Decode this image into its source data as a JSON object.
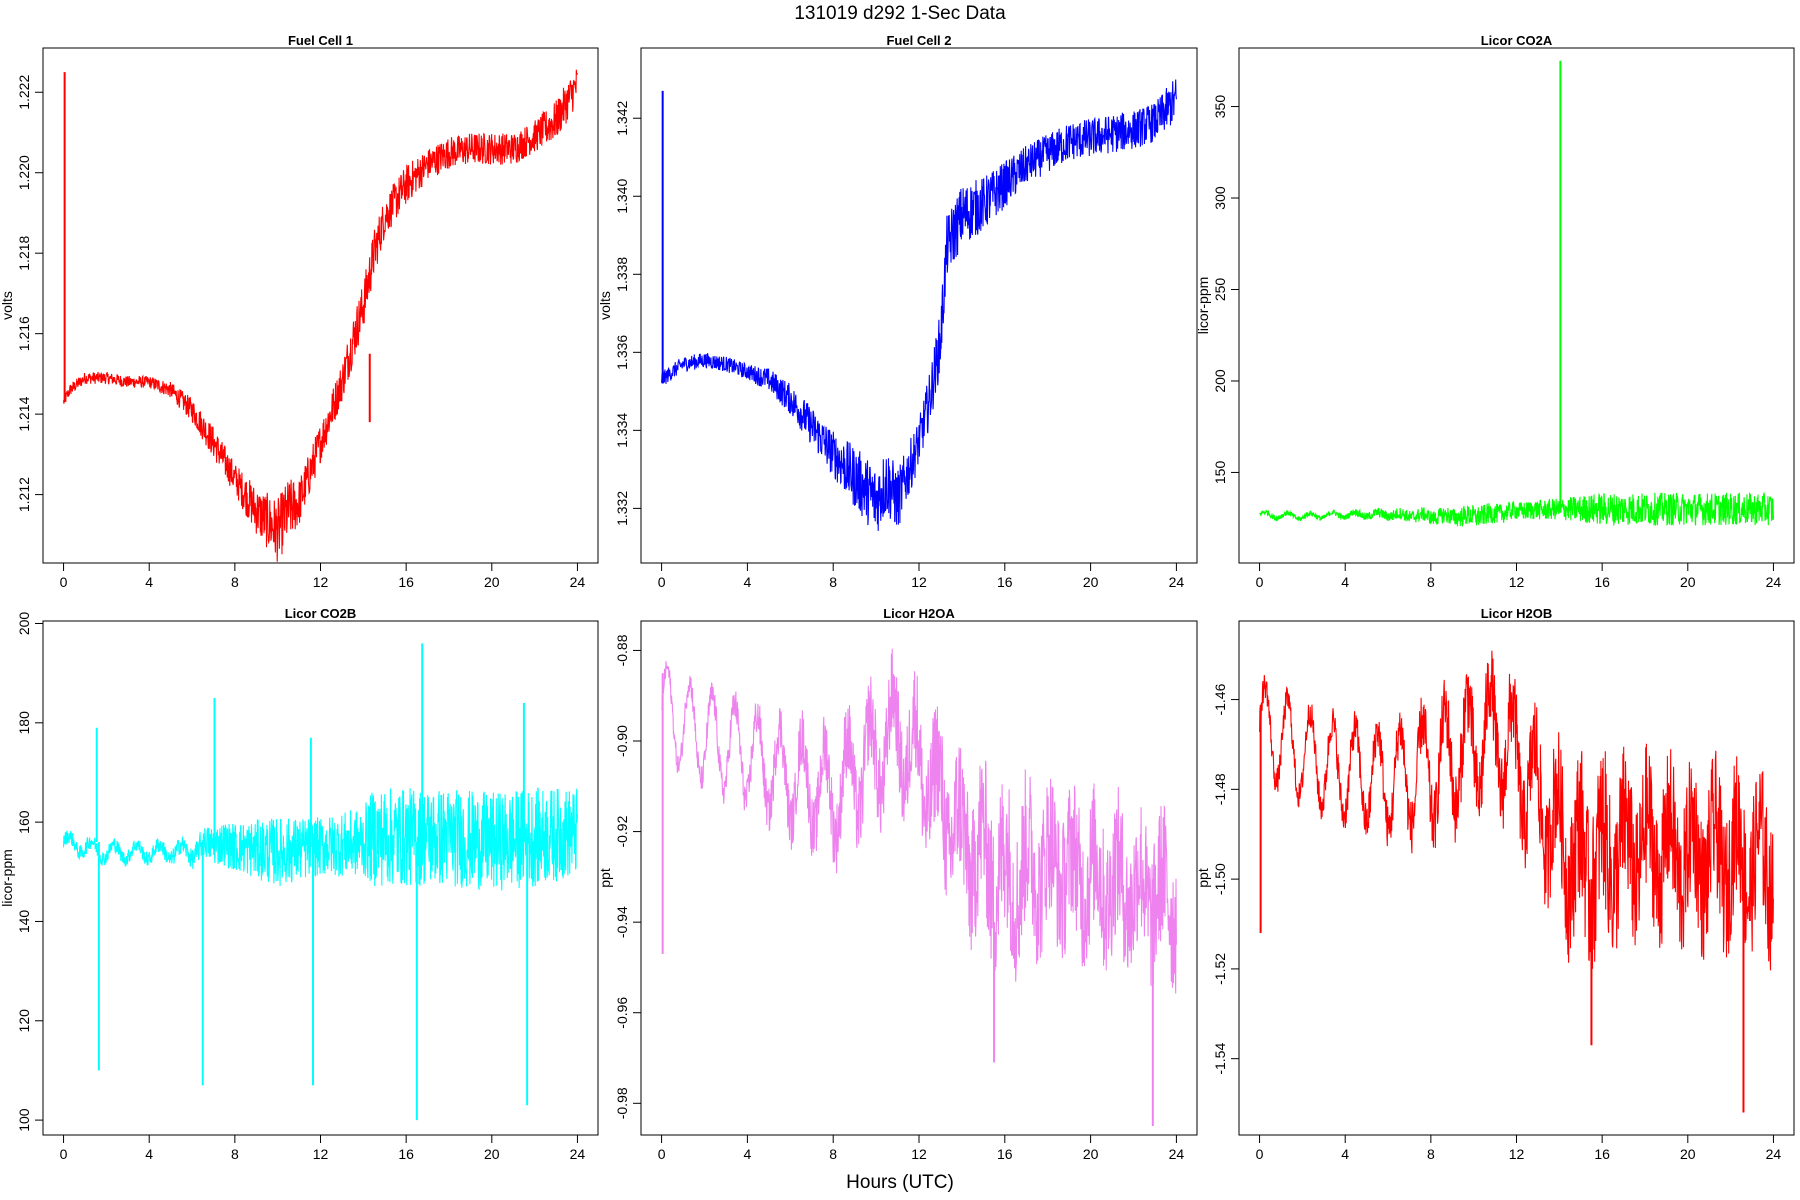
{
  "figure": {
    "title": "131019   d292   1-Sec Data",
    "xlabel": "Hours (UTC)"
  },
  "chart_data": [
    {
      "type": "line",
      "title": "Fuel Cell 1",
      "ylabel": "volts",
      "color": "#ff0000",
      "xlim": [
        -0.96,
        24.96
      ],
      "ylim": [
        1.2103,
        1.2231
      ],
      "xticks": [
        0,
        4,
        8,
        12,
        16,
        20,
        24
      ],
      "yticks": [
        1.212,
        1.214,
        1.216,
        1.218,
        1.22,
        1.222
      ],
      "ytick_labels": [
        "1.212",
        "1.214",
        "1.216",
        "1.218",
        "1.220",
        "1.222"
      ],
      "series": [
        {
          "x": [
            0,
            0.3,
            1,
            2,
            3,
            4,
            5,
            6,
            7,
            8,
            9,
            10,
            10.5,
            11,
            12,
            13,
            13.5,
            14,
            14.5,
            15,
            16,
            17,
            18,
            19,
            20,
            21,
            22,
            23,
            24
          ],
          "y": [
            1.2143,
            1.2146,
            1.2149,
            1.2149,
            1.2148,
            1.2148,
            1.2146,
            1.2141,
            1.2133,
            1.2124,
            1.2116,
            1.2111,
            1.2116,
            1.2118,
            1.2133,
            1.2148,
            1.2158,
            1.2167,
            1.218,
            1.2189,
            1.2197,
            1.2202,
            1.2205,
            1.2206,
            1.2206,
            1.2206,
            1.2209,
            1.2213,
            1.2222
          ],
          "noise": [
            0.00015,
            0.00015,
            0.00015,
            0.00015,
            0.00015,
            0.00015,
            0.0002,
            0.0003,
            0.0004,
            0.0004,
            0.0006,
            0.0008,
            0.0008,
            0.0006,
            0.0005,
            0.0005,
            0.0006,
            0.0006,
            0.0006,
            0.0005,
            0.0005,
            0.0004,
            0.0004,
            0.0004,
            0.0004,
            0.0004,
            0.0004,
            0.0005,
            0.0005
          ]
        }
      ],
      "spikes": [
        {
          "x": 0.05,
          "from": 1.2143,
          "to": 1.2225
        },
        {
          "x": 14.3,
          "from": 1.2155,
          "to": 1.2138
        }
      ]
    },
    {
      "type": "line",
      "title": "Fuel Cell 2",
      "ylabel": "volts",
      "color": "#0000ff",
      "xlim": [
        -0.96,
        24.96
      ],
      "ylim": [
        1.3306,
        1.3438
      ],
      "xticks": [
        0,
        4,
        8,
        12,
        16,
        20,
        24
      ],
      "yticks": [
        1.332,
        1.334,
        1.336,
        1.338,
        1.34,
        1.342
      ],
      "ytick_labels": [
        "1.332",
        "1.334",
        "1.336",
        "1.338",
        "1.340",
        "1.342"
      ],
      "series": [
        {
          "x": [
            0,
            0.5,
            1,
            2,
            3,
            4,
            5,
            6,
            7,
            8,
            9,
            10,
            10.5,
            11,
            12,
            12.5,
            13,
            13.3,
            14,
            15,
            16,
            17,
            18,
            19,
            20,
            21,
            22,
            23,
            24
          ],
          "y": [
            1.3353,
            1.3355,
            1.3357,
            1.3358,
            1.3357,
            1.3355,
            1.3353,
            1.3348,
            1.3341,
            1.3334,
            1.3328,
            1.3322,
            1.3327,
            1.3322,
            1.3337,
            1.3348,
            1.3363,
            1.3387,
            1.3395,
            1.3398,
            1.3403,
            1.3408,
            1.3411,
            1.3414,
            1.3415,
            1.3416,
            1.3417,
            1.3419,
            1.3425
          ],
          "noise": [
            0.0002,
            0.0002,
            0.0002,
            0.0002,
            0.0002,
            0.0002,
            0.0003,
            0.0004,
            0.0005,
            0.0006,
            0.0008,
            0.0009,
            0.0009,
            0.0008,
            0.0006,
            0.0007,
            0.0008,
            0.0008,
            0.0008,
            0.0007,
            0.0006,
            0.0005,
            0.0005,
            0.0005,
            0.0005,
            0.0005,
            0.0005,
            0.0005,
            0.0006
          ]
        }
      ],
      "spikes": [
        {
          "x": 0.05,
          "from": 1.3352,
          "to": 1.3427
        }
      ]
    },
    {
      "type": "line",
      "title": "Licor CO2A",
      "ylabel": "licor-ppm",
      "color": "#00ff00",
      "xlim": [
        -0.96,
        24.96
      ],
      "ylim": [
        100.5,
        382
      ],
      "xticks": [
        0,
        4,
        8,
        12,
        16,
        20,
        24
      ],
      "yticks": [
        150,
        200,
        250,
        300,
        350
      ],
      "ytick_labels": [
        "150",
        "200",
        "250",
        "300",
        "350"
      ],
      "series": [
        {
          "x": [
            0,
            2,
            4,
            6,
            8,
            10,
            12,
            14,
            16,
            18,
            20,
            22,
            24
          ],
          "y": [
            127,
            126,
            127,
            127,
            126,
            126,
            129,
            130,
            130,
            130,
            130,
            130,
            130
          ],
          "noise": [
            1.5,
            1.5,
            1.5,
            3,
            4,
            6,
            5,
            6,
            9,
            9,
            9,
            9,
            9
          ],
          "wave_amp": [
            1.5,
            1.5,
            1.5,
            1,
            1,
            0.5,
            0.5,
            0,
            0,
            0,
            0,
            0,
            0
          ]
        }
      ],
      "spikes": [
        {
          "x": 14.05,
          "from": 128,
          "to": 375
        }
      ]
    },
    {
      "type": "line",
      "title": "Licor CO2B",
      "ylabel": "licor-ppm",
      "color": "#00ffff",
      "xlim": [
        -0.96,
        24.96
      ],
      "ylim": [
        97,
        200.5
      ],
      "xticks": [
        0,
        4,
        8,
        12,
        16,
        20,
        24
      ],
      "yticks": [
        100,
        120,
        140,
        160,
        180,
        200
      ],
      "ytick_labels": [
        "100",
        "120",
        "140",
        "160",
        "180",
        "200"
      ],
      "series": [
        {
          "x": [
            0,
            2,
            4,
            6,
            7,
            8,
            10,
            12,
            14,
            14.5,
            16,
            18,
            20,
            22,
            24
          ],
          "y": [
            156,
            154,
            154,
            154,
            156,
            155,
            154,
            155,
            156,
            157,
            157,
            157,
            156,
            157,
            158
          ],
          "noise": [
            1.5,
            1.5,
            1.5,
            2,
            4,
            5,
            7,
            6,
            7,
            10,
            10,
            10,
            10,
            10,
            9
          ],
          "wave_amp": [
            1.5,
            1.5,
            1.5,
            1.5,
            0.5,
            0,
            0,
            0,
            0,
            0,
            0,
            0,
            0,
            0,
            0
          ]
        }
      ],
      "spikes": [
        {
          "x": 1.55,
          "from": 156,
          "to": 179
        },
        {
          "x": 1.65,
          "from": 156,
          "to": 110
        },
        {
          "x": 6.5,
          "from": 155,
          "to": 107
        },
        {
          "x": 7.05,
          "from": 157,
          "to": 185
        },
        {
          "x": 11.55,
          "from": 155,
          "to": 177
        },
        {
          "x": 11.65,
          "from": 155,
          "to": 107
        },
        {
          "x": 16.5,
          "from": 156,
          "to": 100
        },
        {
          "x": 16.75,
          "from": 157,
          "to": 196
        },
        {
          "x": 21.5,
          "from": 156,
          "to": 184
        },
        {
          "x": 21.65,
          "from": 156,
          "to": 103
        }
      ]
    },
    {
      "type": "line",
      "title": "Licor H2OA",
      "ylabel": "ppt",
      "color": "#ee82ee",
      "xlim": [
        -0.96,
        24.96
      ],
      "ylim": [
        -0.987,
        -0.8735
      ],
      "xticks": [
        0,
        4,
        8,
        12,
        16,
        20,
        24
      ],
      "yticks": [
        -0.98,
        -0.96,
        -0.94,
        -0.92,
        -0.9,
        -0.88
      ],
      "ytick_labels": [
        "-0.98",
        "-0.96",
        "-0.94",
        "-0.92",
        "-0.90",
        "-0.88"
      ],
      "series": [
        {
          "x": [
            0,
            2,
            4,
            6,
            8,
            10,
            11,
            12,
            14,
            16,
            18,
            20,
            22,
            24
          ],
          "y": [
            -0.893,
            -0.899,
            -0.903,
            -0.908,
            -0.912,
            -0.903,
            -0.898,
            -0.905,
            -0.922,
            -0.93,
            -0.927,
            -0.93,
            -0.933,
            -0.935
          ],
          "noise": [
            0.002,
            0.003,
            0.004,
            0.006,
            0.008,
            0.01,
            0.01,
            0.012,
            0.016,
            0.018,
            0.016,
            0.016,
            0.016,
            0.016
          ],
          "wave_amp": [
            0.01,
            0.01,
            0.01,
            0.01,
            0.01,
            0.01,
            0.01,
            0.01,
            0.008,
            0.008,
            0.006,
            0.006,
            0.006,
            0.006
          ]
        }
      ],
      "spikes": [
        {
          "x": 0.05,
          "from": -0.885,
          "to": -0.947
        },
        {
          "x": 22.9,
          "from": -0.94,
          "to": -0.985
        },
        {
          "x": 15.5,
          "from": -0.94,
          "to": -0.971
        }
      ]
    },
    {
      "type": "line",
      "title": "Licor H2OB",
      "ylabel": "ppt",
      "color": "#ff0000",
      "xlim": [
        -0.96,
        24.96
      ],
      "ylim": [
        -1.557,
        -1.4425
      ],
      "xticks": [
        0,
        4,
        8,
        12,
        16,
        20,
        24
      ],
      "yticks": [
        -1.54,
        -1.52,
        -1.5,
        -1.48,
        -1.46
      ],
      "ytick_labels": [
        "-1.54",
        "-1.52",
        "-1.50",
        "-1.48",
        "-1.46"
      ],
      "series": [
        {
          "x": [
            0,
            2,
            4,
            6,
            8,
            10,
            11,
            12,
            14,
            15,
            16,
            18,
            20,
            22,
            24
          ],
          "y": [
            -1.466,
            -1.472,
            -1.476,
            -1.478,
            -1.476,
            -1.47,
            -1.467,
            -1.474,
            -1.49,
            -1.497,
            -1.495,
            -1.493,
            -1.495,
            -1.495,
            -1.497
          ],
          "noise": [
            0.003,
            0.003,
            0.004,
            0.005,
            0.007,
            0.009,
            0.009,
            0.01,
            0.014,
            0.018,
            0.018,
            0.016,
            0.016,
            0.016,
            0.016
          ],
          "wave_amp": [
            0.01,
            0.01,
            0.01,
            0.011,
            0.012,
            0.012,
            0.012,
            0.012,
            0.01,
            0.01,
            0.008,
            0.008,
            0.008,
            0.008,
            0.008
          ]
        }
      ],
      "spikes": [
        {
          "x": 0.05,
          "from": -1.462,
          "to": -1.512
        },
        {
          "x": 22.6,
          "from": -1.5,
          "to": -1.552
        },
        {
          "x": 15.5,
          "from": -1.5,
          "to": -1.537
        }
      ]
    }
  ]
}
